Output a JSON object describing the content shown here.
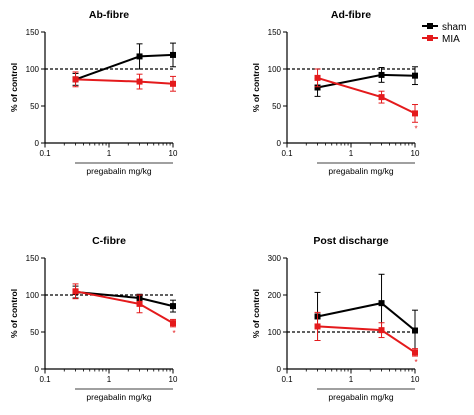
{
  "legend": {
    "items": [
      {
        "label": "sham",
        "color": "#000000"
      },
      {
        "label": "MIA",
        "color": "#e41a1c"
      }
    ]
  },
  "chart_data": [
    {
      "type": "line",
      "title": "Ab-fibre",
      "xlabel": "pregabalin mg/kg",
      "ylabel": "% of control",
      "xscale": "log",
      "xlim": [
        0.1,
        10
      ],
      "ylim": [
        0,
        150
      ],
      "yticks": [
        "0",
        "50",
        "100",
        "150"
      ],
      "xticks": [
        "0.1",
        "1",
        "10"
      ],
      "reference_line": 100,
      "series": [
        {
          "name": "sham",
          "color": "#000000",
          "x": [
            0.3,
            3,
            10
          ],
          "y": [
            86,
            117,
            119
          ],
          "err": [
            8,
            17,
            16
          ],
          "sig": [
            "",
            "",
            ""
          ]
        },
        {
          "name": "MIA",
          "color": "#e41a1c",
          "x": [
            0.3,
            3,
            10
          ],
          "y": [
            86,
            83,
            80
          ],
          "err": [
            10,
            10,
            10
          ],
          "sig": [
            "",
            "",
            ""
          ]
        }
      ]
    },
    {
      "type": "line",
      "title": "Ad-fibre",
      "xlabel": "pregabalin mg/kg",
      "ylabel": "% of control",
      "xscale": "log",
      "xlim": [
        0.1,
        10
      ],
      "ylim": [
        0,
        150
      ],
      "yticks": [
        "0",
        "50",
        "100",
        "150"
      ],
      "xticks": [
        "0.1",
        "1",
        "10"
      ],
      "reference_line": 100,
      "series": [
        {
          "name": "sham",
          "color": "#000000",
          "x": [
            0.3,
            3,
            10
          ],
          "y": [
            75,
            92,
            91
          ],
          "err": [
            12,
            10,
            12
          ],
          "sig": [
            "",
            "",
            ""
          ]
        },
        {
          "name": "MIA",
          "color": "#e41a1c",
          "x": [
            0.3,
            3,
            10
          ],
          "y": [
            88,
            62,
            40
          ],
          "err": [
            12,
            8,
            12
          ],
          "sig": [
            "",
            "",
            "*"
          ]
        }
      ]
    },
    {
      "type": "line",
      "title": "C-fibre",
      "xlabel": "pregabalin mg/kg",
      "ylabel": "% of control",
      "xscale": "log",
      "xlim": [
        0.1,
        10
      ],
      "ylim": [
        0,
        150
      ],
      "yticks": [
        "0",
        "50",
        "100",
        "150"
      ],
      "xticks": [
        "0.1",
        "1",
        "10"
      ],
      "reference_line": 100,
      "series": [
        {
          "name": "sham",
          "color": "#000000",
          "x": [
            0.3,
            3,
            10
          ],
          "y": [
            104,
            96,
            85
          ],
          "err": [
            8,
            5,
            8
          ],
          "sig": [
            "",
            "",
            ""
          ]
        },
        {
          "name": "MIA",
          "color": "#e41a1c",
          "x": [
            0.3,
            3,
            10
          ],
          "y": [
            105,
            88,
            62
          ],
          "err": [
            10,
            12,
            5
          ],
          "sig": [
            "",
            "",
            "*"
          ]
        }
      ]
    },
    {
      "type": "line",
      "title": "Post discharge",
      "xlabel": "pregabalin mg/kg",
      "ylabel": "% of control",
      "xscale": "log",
      "xlim": [
        0.1,
        10
      ],
      "ylim": [
        0,
        300
      ],
      "yticks": [
        "0",
        "100",
        "200",
        "300"
      ],
      "xticks": [
        "0.1",
        "1",
        "10"
      ],
      "reference_line": 100,
      "series": [
        {
          "name": "sham",
          "color": "#000000",
          "x": [
            0.3,
            3,
            10
          ],
          "y": [
            142,
            178,
            104
          ],
          "err": [
            65,
            78,
            55
          ],
          "sig": [
            "",
            "",
            ""
          ]
        },
        {
          "name": "MIA",
          "color": "#e41a1c",
          "x": [
            0.3,
            3,
            10
          ],
          "y": [
            115,
            105,
            45
          ],
          "err": [
            38,
            20,
            10
          ],
          "sig": [
            "",
            "",
            "*"
          ]
        }
      ]
    }
  ]
}
